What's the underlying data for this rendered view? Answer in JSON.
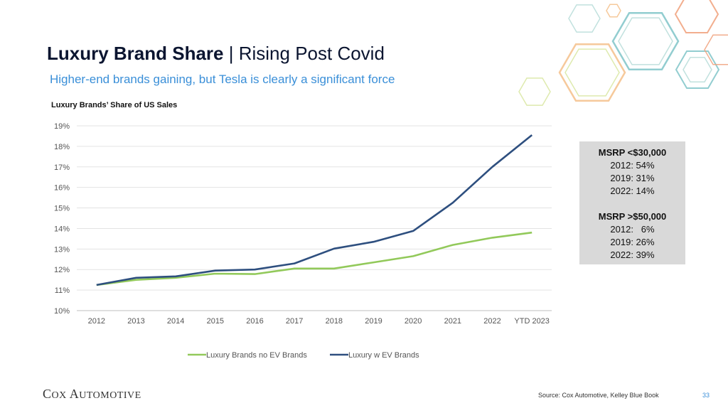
{
  "header": {
    "title_bold": "Luxury Brand Share",
    "title_rest": " | Rising Post Covid",
    "subtitle": "Higher-end brands gaining, but Tesla is clearly a significant force"
  },
  "chart_data": {
    "type": "line",
    "title": "Luxury Brands’ Share of US Sales",
    "categories": [
      "2012",
      "2013",
      "2014",
      "2015",
      "2016",
      "2017",
      "2018",
      "2019",
      "2020",
      "2021",
      "2022",
      "YTD 2023"
    ],
    "ylim": [
      10,
      19
    ],
    "yticks": [
      "10%",
      "11%",
      "12%",
      "13%",
      "14%",
      "15%",
      "16%",
      "17%",
      "18%",
      "19%"
    ],
    "grid": true,
    "legend_position": "bottom",
    "series": [
      {
        "name": "Luxury Brands no EV Brands",
        "color": "#92c95a",
        "values": [
          11.25,
          11.5,
          11.6,
          11.8,
          11.78,
          12.05,
          12.05,
          12.35,
          12.65,
          13.2,
          13.55,
          13.8
        ]
      },
      {
        "name": "Luxury w EV Brands",
        "color": "#2e4f7f",
        "values": [
          11.25,
          11.6,
          11.67,
          11.95,
          12.0,
          12.3,
          13.02,
          13.35,
          13.88,
          15.25,
          17.0,
          18.55
        ]
      }
    ]
  },
  "callout": {
    "group1": {
      "heading": "MSRP <$30,000",
      "lines": [
        "2012: 54%",
        "2019: 31%",
        "2022: 14%"
      ]
    },
    "group2": {
      "heading": "MSRP >$50,000",
      "lines": [
        "2012:   6%",
        "2019: 26%",
        "2022: 39%"
      ]
    }
  },
  "footer": {
    "logo_c": "C",
    "logo_ox": "OX",
    "logo_a": " A",
    "logo_utomotive": "UTOMOTIVE",
    "source": "Source: Cox Automotive, Kelley Blue Book",
    "page_number": "33"
  },
  "decor": {
    "hex_colors": [
      "#b6dcd8",
      "#f4c08a",
      "#f0a07a",
      "#7fc4c8",
      "#d8e6a0"
    ]
  }
}
